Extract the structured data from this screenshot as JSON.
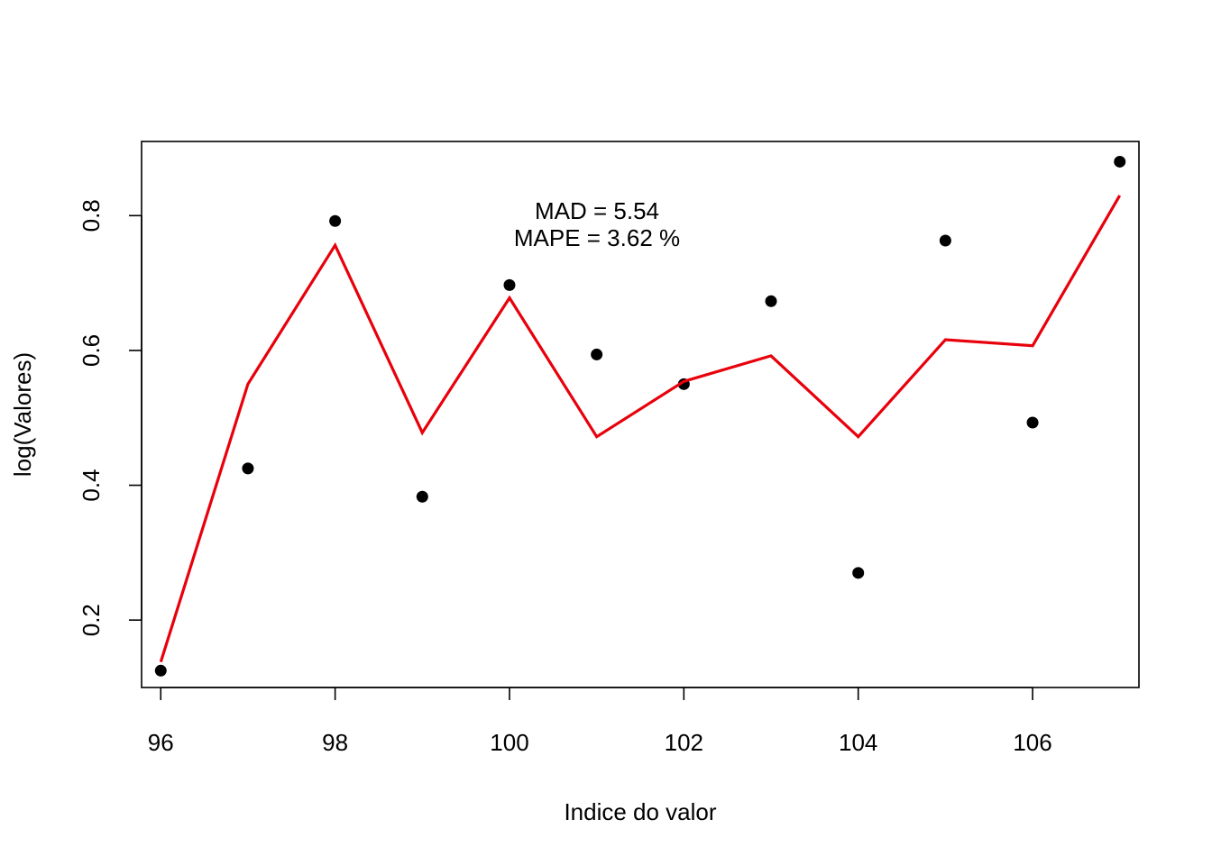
{
  "chart_data": {
    "type": "scatter",
    "xlabel": "Indice do valor",
    "ylabel": "log(Valores)",
    "xlim": [
      95.78,
      107.22
    ],
    "ylim": [
      0.1,
      0.91
    ],
    "x_ticks": [
      96,
      98,
      100,
      102,
      104,
      106
    ],
    "y_ticks": [
      0.2,
      0.4,
      0.6,
      0.8
    ],
    "x_tick_labels": [
      "96",
      "98",
      "100",
      "102",
      "104",
      "106"
    ],
    "y_tick_labels": [
      "0.2",
      "0.4",
      "0.6",
      "0.8"
    ],
    "annotations": [
      "MAD = 5.54",
      "MAPE = 3.62 %"
    ],
    "grid": false,
    "series": [
      {
        "kind": "points",
        "color": "#000000",
        "x": [
          96,
          97,
          98,
          99,
          100,
          101,
          102,
          103,
          104,
          105,
          106,
          107
        ],
        "y": [
          0.125,
          0.425,
          0.792,
          0.383,
          0.697,
          0.594,
          0.55,
          0.673,
          0.27,
          0.763,
          0.493,
          0.88
        ]
      },
      {
        "kind": "line",
        "color": "#e8000b",
        "x": [
          96,
          97,
          98,
          99,
          100,
          101,
          102,
          103,
          104,
          105,
          106,
          107
        ],
        "y": [
          0.138,
          0.55,
          0.756,
          0.478,
          0.678,
          0.472,
          0.554,
          0.592,
          0.472,
          0.616,
          0.607,
          0.83
        ]
      }
    ]
  }
}
